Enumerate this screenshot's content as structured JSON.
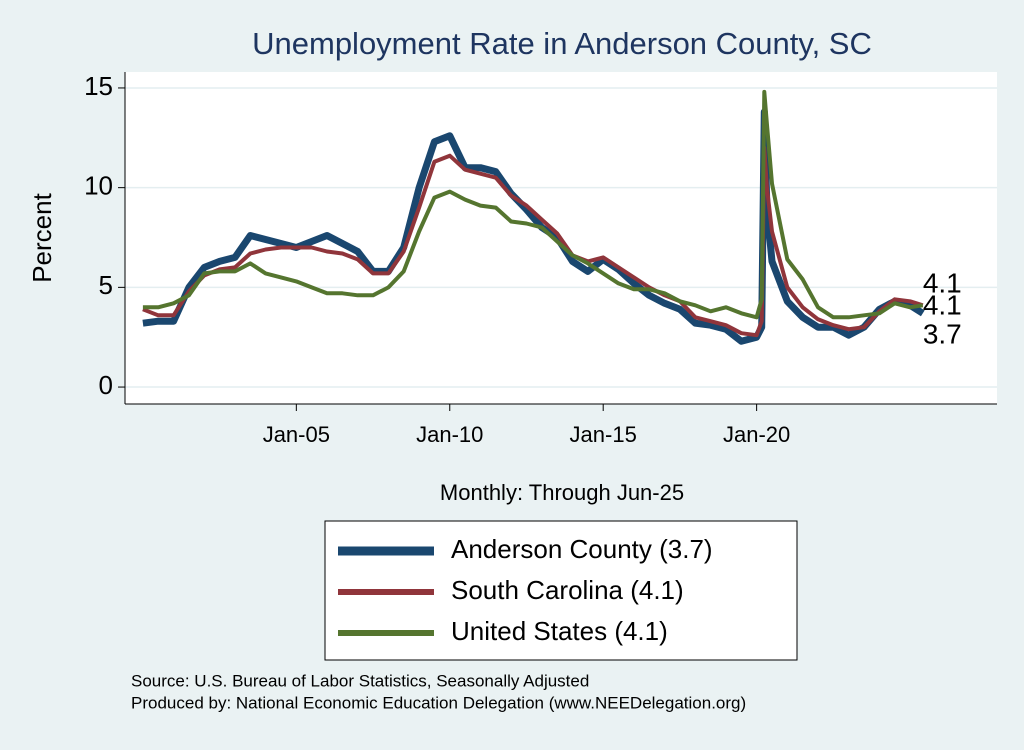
{
  "chart_data": {
    "type": "line",
    "title": "Unemployment Rate in Anderson  County, SC",
    "y_label": "Percent",
    "x_label": "Monthly: Through Jun-25",
    "notes": [
      "Source: U.S. Bureau of Labor Statistics, Seasonally Adjusted",
      "Produced by: National Economic Education Delegation (www.NEEDelegation.org)"
    ],
    "x": [
      "Jan-00",
      "Jul-00",
      "Jan-01",
      "Jul-01",
      "Jan-02",
      "Jul-02",
      "Jan-03",
      "Jul-03",
      "Jan-04",
      "Jul-04",
      "Jan-05",
      "Jul-05",
      "Jan-06",
      "Jul-06",
      "Jan-07",
      "Jul-07",
      "Jan-08",
      "Jul-08",
      "Jan-09",
      "Jul-09",
      "Jan-10",
      "Jul-10",
      "Jan-11",
      "Jul-11",
      "Jan-12",
      "Jul-12",
      "Jan-13",
      "Jul-13",
      "Jan-14",
      "Jul-14",
      "Jan-15",
      "Jul-15",
      "Jan-16",
      "Jul-16",
      "Jan-17",
      "Jul-17",
      "Jan-18",
      "Jul-18",
      "Jan-19",
      "Jul-19",
      "Jan-20",
      "Mar-20",
      "Apr-20",
      "May-20",
      "Jul-20",
      "Jan-21",
      "Jul-21",
      "Jan-22",
      "Jul-22",
      "Jan-23",
      "Jul-23",
      "Jan-24",
      "Jul-24",
      "Jan-25",
      "Jun-25"
    ],
    "series": [
      {
        "name": "Anderson  County (3.7)",
        "color": "#1a476f",
        "width": 7,
        "values": [
          3.2,
          3.3,
          3.3,
          5.0,
          6.0,
          6.3,
          6.5,
          7.6,
          7.4,
          7.2,
          7.0,
          7.3,
          7.6,
          7.2,
          6.8,
          5.8,
          5.8,
          7.0,
          10.0,
          12.3,
          12.6,
          11.0,
          11.0,
          10.8,
          9.7,
          8.9,
          8.0,
          7.5,
          6.3,
          5.8,
          6.4,
          5.9,
          5.2,
          4.6,
          4.2,
          3.9,
          3.2,
          3.1,
          2.9,
          2.3,
          2.5,
          3.0,
          13.8,
          9.0,
          6.3,
          4.3,
          3.5,
          3.0,
          3.0,
          2.6,
          3.0,
          3.9,
          4.3,
          4.1,
          3.7
        ]
      },
      {
        "name": "South Carolina (4.1)",
        "color": "#90353b",
        "width": 4,
        "values": [
          3.9,
          3.6,
          3.6,
          4.8,
          5.6,
          5.9,
          6.0,
          6.7,
          6.9,
          7.0,
          7.0,
          7.0,
          6.8,
          6.7,
          6.4,
          5.7,
          5.7,
          6.8,
          9.0,
          11.3,
          11.6,
          10.9,
          10.7,
          10.5,
          9.6,
          9.1,
          8.4,
          7.7,
          6.6,
          6.3,
          6.5,
          6.0,
          5.5,
          5.0,
          4.6,
          4.3,
          3.5,
          3.3,
          3.1,
          2.7,
          2.6,
          3.3,
          12.0,
          10.0,
          7.8,
          5.0,
          4.0,
          3.4,
          3.1,
          2.9,
          3.0,
          3.8,
          4.4,
          4.3,
          4.1
        ]
      },
      {
        "name": "United States (4.1)",
        "color": "#55752f",
        "width": 4,
        "values": [
          4.0,
          4.0,
          4.2,
          4.6,
          5.7,
          5.8,
          5.8,
          6.2,
          5.7,
          5.5,
          5.3,
          5.0,
          4.7,
          4.7,
          4.6,
          4.6,
          5.0,
          5.8,
          7.8,
          9.5,
          9.8,
          9.4,
          9.1,
          9.0,
          8.3,
          8.2,
          8.0,
          7.3,
          6.6,
          6.2,
          5.7,
          5.2,
          4.9,
          4.9,
          4.7,
          4.3,
          4.1,
          3.8,
          4.0,
          3.7,
          3.5,
          4.4,
          14.8,
          13.2,
          10.2,
          6.4,
          5.4,
          4.0,
          3.5,
          3.5,
          3.6,
          3.7,
          4.2,
          4.0,
          4.1
        ]
      }
    ],
    "xlim": [
      "Jun-99",
      "Nov-27"
    ],
    "xticks": [
      "Jan-05",
      "Jan-10",
      "Jan-15",
      "Jan-20"
    ],
    "ylim": [
      -0.85,
      15.8
    ],
    "yticks": [
      0,
      5,
      10,
      15
    ],
    "grid": true
  }
}
